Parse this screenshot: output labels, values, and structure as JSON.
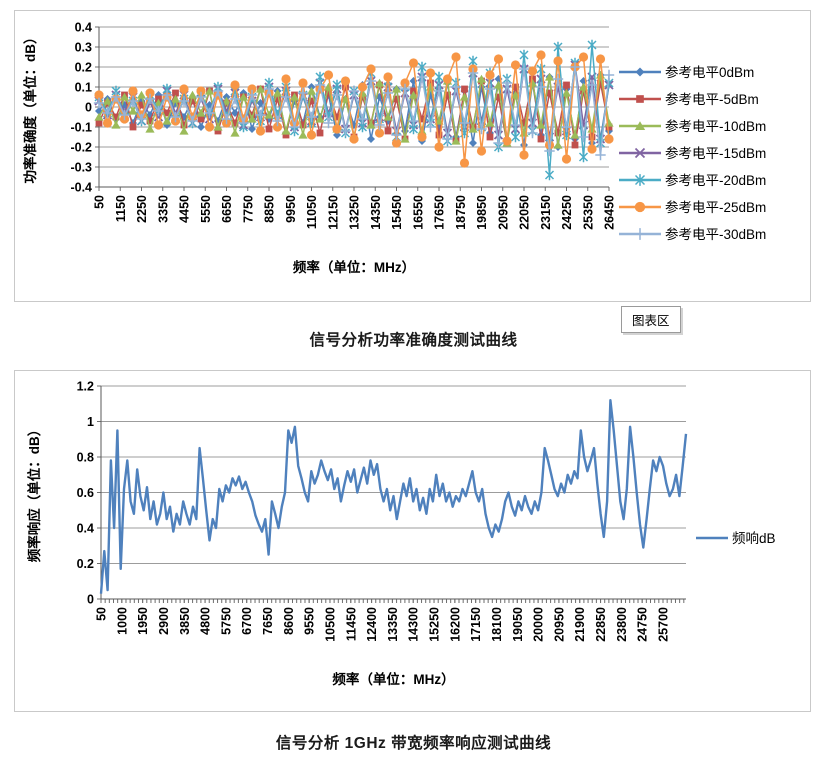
{
  "captions": {
    "chart1": "信号分析功率准确度测试曲线",
    "chart2": "信号分析 1GHz 带宽频率响应测试曲线"
  },
  "tooltip": {
    "label": "图表区"
  },
  "chart_data": [
    {
      "type": "line",
      "title": "",
      "xlabel": "频率（单位：MHz）",
      "ylabel": "功率准确度（单位：dB）",
      "ylim": [
        -0.4,
        0.4
      ],
      "ytick_labels": [
        "0.4",
        "0.3",
        "0.2",
        "0.1",
        "0",
        "-0.1",
        "-0.2",
        "-0.3",
        "-0.4"
      ],
      "xticks": [
        50,
        1150,
        2250,
        3350,
        4450,
        5550,
        6650,
        7750,
        8850,
        9950,
        11050,
        12150,
        13250,
        14350,
        15450,
        16550,
        17650,
        18750,
        19850,
        20950,
        22050,
        23150,
        24250,
        25350,
        26450
      ],
      "x_start": 50,
      "x_step": 440,
      "x_unit": "MHz",
      "grid": true,
      "legend_position": "right",
      "series": [
        {
          "name": "参考电平0dBm",
          "color": "#4F81BD",
          "marker": "diamond",
          "values": [
            -0.02,
            0.04,
            -0.06,
            0.01,
            -0.08,
            0.03,
            -0.04,
            0.06,
            -0.09,
            0.02,
            -0.05,
            0.04,
            -0.1,
            0.01,
            -0.07,
            0.05,
            -0.03,
            0.07,
            -0.11,
            0.02,
            -0.06,
            0.08,
            -0.13,
            0.03,
            -0.08,
            0.1,
            -0.05,
            0.06,
            -0.14,
            0.04,
            -0.09,
            0.11,
            -0.16,
            0.05,
            -0.07,
            0.09,
            -0.12,
            0.13,
            -0.17,
            0.06,
            -0.1,
            0.12,
            -0.15,
            0.08,
            -0.18,
            0.1,
            -0.13,
            0.14,
            -0.16,
            0.07,
            -0.19,
            0.12,
            -0.14,
            0.15,
            -0.2,
            0.09,
            -0.16,
            0.13,
            -0.18,
            0.16,
            -0.12
          ]
        },
        {
          "name": "参考电平-5dBm",
          "color": "#C0504D",
          "marker": "square",
          "values": [
            -0.08,
            0.02,
            -0.05,
            0.06,
            -0.1,
            0.01,
            -0.07,
            0.04,
            -0.03,
            0.07,
            -0.09,
            0.03,
            -0.06,
            0.08,
            -0.12,
            0.02,
            -0.08,
            0.05,
            -0.04,
            0.09,
            -0.11,
            0.04,
            -0.14,
            0.06,
            -0.09,
            0.03,
            -0.13,
            0.07,
            -0.05,
            0.1,
            -0.15,
            0.05,
            -0.08,
            0.11,
            -0.12,
            0.04,
            -0.16,
            0.08,
            -0.06,
            0.12,
            -0.14,
            0.06,
            -0.17,
            0.09,
            -0.1,
            0.13,
            -0.15,
            0.05,
            -0.18,
            0.1,
            -0.08,
            0.14,
            -0.16,
            0.07,
            -0.13,
            0.11,
            -0.19,
            0.08,
            -0.15,
            0.12,
            -0.1
          ]
        },
        {
          "name": "参考电平-10dBm",
          "color": "#9BBB59",
          "marker": "triangle",
          "values": [
            -0.05,
            0.03,
            -0.09,
            0.05,
            -0.02,
            0.06,
            -0.11,
            0.02,
            -0.07,
            0.04,
            -0.12,
            0.06,
            -0.03,
            0.08,
            -0.1,
            0.03,
            -0.13,
            0.05,
            -0.06,
            0.09,
            -0.04,
            0.07,
            -0.12,
            0.05,
            -0.14,
            0.08,
            -0.06,
            0.1,
            -0.11,
            0.04,
            -0.15,
            0.07,
            -0.09,
            0.12,
            -0.05,
            0.09,
            -0.16,
            0.06,
            -0.12,
            0.1,
            -0.07,
            0.13,
            -0.17,
            0.05,
            -0.11,
            0.14,
            -0.08,
            0.11,
            -0.18,
            0.06,
            -0.13,
            0.12,
            -0.09,
            0.15,
            -0.19,
            0.07,
            -0.14,
            0.1,
            -0.11,
            0.16,
            -0.08
          ]
        },
        {
          "name": "参考电平-15dBm",
          "color": "#8064A2",
          "marker": "x",
          "values": [
            0.03,
            -0.04,
            0.06,
            -0.02,
            0.05,
            -0.07,
            0.02,
            -0.05,
            0.08,
            -0.03,
            0.06,
            -0.08,
            0.04,
            -0.06,
            0.09,
            -0.02,
            0.07,
            -0.09,
            0.03,
            -0.05,
            0.1,
            -0.04,
            0.08,
            -0.1,
            0.05,
            -0.07,
            0.12,
            -0.03,
            0.09,
            -0.11,
            0.06,
            -0.08,
            0.13,
            -0.05,
            0.1,
            -0.12,
            0.07,
            -0.09,
            0.15,
            -0.06,
            0.11,
            -0.13,
            0.08,
            -0.1,
            0.17,
            -0.07,
            0.12,
            -0.14,
            0.09,
            -0.11,
            0.19,
            -0.08,
            0.14,
            -0.15,
            0.1,
            -0.12,
            0.21,
            -0.09,
            0.15,
            -0.16,
            0.11
          ]
        },
        {
          "name": "参考电平-20dBm",
          "color": "#4BACC6",
          "marker": "asterisk",
          "values": [
            0.05,
            -0.03,
            0.08,
            -0.05,
            0.03,
            -0.07,
            0.06,
            -0.02,
            0.09,
            -0.06,
            0.04,
            -0.08,
            0.07,
            -0.03,
            0.1,
            -0.05,
            0.08,
            -0.1,
            0.05,
            -0.07,
            0.12,
            -0.04,
            0.1,
            -0.12,
            0.06,
            -0.08,
            0.15,
            -0.05,
            0.11,
            -0.13,
            0.08,
            -0.1,
            0.17,
            -0.06,
            0.13,
            -0.15,
            0.1,
            -0.11,
            0.2,
            -0.08,
            0.15,
            -0.17,
            0.12,
            -0.13,
            0.23,
            -0.1,
            0.17,
            -0.2,
            0.14,
            -0.15,
            0.26,
            -0.12,
            0.19,
            -0.34,
            0.3,
            -0.14,
            0.22,
            -0.25,
            0.31,
            -0.18,
            0.12
          ]
        },
        {
          "name": "参考电平-25dBm",
          "color": "#F79646",
          "marker": "circle",
          "values": [
            0.06,
            -0.08,
            0.04,
            -0.06,
            0.08,
            -0.04,
            0.07,
            -0.09,
            0.05,
            -0.07,
            0.09,
            -0.05,
            0.08,
            -0.1,
            0.06,
            -0.08,
            0.11,
            -0.06,
            0.09,
            -0.12,
            0.07,
            -0.1,
            0.14,
            -0.08,
            0.12,
            -0.14,
            0.09,
            0.16,
            -0.11,
            0.13,
            -0.16,
            0.1,
            0.19,
            -0.13,
            0.15,
            -0.18,
            0.12,
            0.22,
            -0.15,
            0.17,
            -0.2,
            0.14,
            0.25,
            -0.28,
            0.19,
            -0.22,
            0.16,
            0.24,
            -0.17,
            0.21,
            -0.24,
            0.18,
            0.26,
            -0.19,
            0.23,
            -0.26,
            0.2,
            0.25,
            -0.21,
            0.24,
            -0.16
          ]
        },
        {
          "name": "参考电平-30dBm",
          "color": "#95B3D7",
          "marker": "plus",
          "values": [
            0.02,
            -0.03,
            0.05,
            -0.04,
            0.03,
            -0.06,
            0.04,
            -0.02,
            0.06,
            -0.05,
            0.03,
            -0.07,
            0.05,
            -0.03,
            0.08,
            -0.06,
            0.04,
            -0.08,
            0.06,
            -0.04,
            0.09,
            -0.07,
            0.05,
            -0.1,
            0.07,
            -0.05,
            0.11,
            -0.08,
            0.06,
            -0.12,
            0.08,
            -0.06,
            0.13,
            -0.09,
            0.07,
            -0.14,
            0.09,
            -0.07,
            0.15,
            -0.1,
            0.08,
            -0.16,
            0.1,
            -0.08,
            0.17,
            -0.11,
            0.09,
            -0.18,
            0.12,
            -0.09,
            0.19,
            -0.13,
            0.1,
            -0.22,
            0.14,
            -0.1,
            0.2,
            -0.15,
            0.11,
            -0.24,
            0.16
          ]
        }
      ]
    },
    {
      "type": "line",
      "title": "",
      "xlabel": "频率（单位：MHz）",
      "ylabel": "频率响应（单位：dB）",
      "ylim": [
        0,
        1.2
      ],
      "ytick_labels": [
        "1.2",
        "1",
        "0.8",
        "0.6",
        "0.4",
        "0.2",
        "0"
      ],
      "xticks": [
        50,
        1000,
        1950,
        2900,
        3850,
        4800,
        5750,
        6700,
        7650,
        8600,
        9550,
        10500,
        11450,
        12400,
        13350,
        14300,
        15250,
        16200,
        17150,
        18100,
        19050,
        20000,
        20950,
        21900,
        22850,
        23800,
        24750,
        25700
      ],
      "x_start": 50,
      "x_step": 150,
      "x_unit": "MHz",
      "grid": true,
      "legend_position": "right",
      "series": [
        {
          "name": "频响dB",
          "color": "#4F81BD",
          "marker": "none",
          "values": [
            0.03,
            0.27,
            0.05,
            0.78,
            0.4,
            0.95,
            0.17,
            0.62,
            0.78,
            0.55,
            0.48,
            0.73,
            0.58,
            0.5,
            0.63,
            0.45,
            0.55,
            0.42,
            0.48,
            0.6,
            0.45,
            0.52,
            0.38,
            0.48,
            0.42,
            0.55,
            0.48,
            0.42,
            0.52,
            0.45,
            0.85,
            0.68,
            0.5,
            0.33,
            0.45,
            0.4,
            0.62,
            0.55,
            0.64,
            0.6,
            0.68,
            0.64,
            0.69,
            0.62,
            0.66,
            0.6,
            0.55,
            0.47,
            0.42,
            0.38,
            0.45,
            0.25,
            0.55,
            0.48,
            0.4,
            0.52,
            0.6,
            0.95,
            0.88,
            0.97,
            0.75,
            0.68,
            0.6,
            0.55,
            0.72,
            0.65,
            0.7,
            0.78,
            0.72,
            0.67,
            0.73,
            0.62,
            0.68,
            0.55,
            0.64,
            0.72,
            0.66,
            0.73,
            0.6,
            0.67,
            0.74,
            0.65,
            0.78,
            0.7,
            0.76,
            0.62,
            0.55,
            0.62,
            0.5,
            0.58,
            0.45,
            0.55,
            0.65,
            0.58,
            0.68,
            0.55,
            0.62,
            0.5,
            0.57,
            0.48,
            0.62,
            0.55,
            0.7,
            0.58,
            0.65,
            0.55,
            0.6,
            0.52,
            0.58,
            0.55,
            0.62,
            0.58,
            0.65,
            0.72,
            0.6,
            0.55,
            0.62,
            0.48,
            0.4,
            0.35,
            0.42,
            0.38,
            0.45,
            0.55,
            0.6,
            0.52,
            0.47,
            0.55,
            0.5,
            0.58,
            0.52,
            0.48,
            0.55,
            0.5,
            0.6,
            0.85,
            0.78,
            0.7,
            0.62,
            0.58,
            0.65,
            0.6,
            0.7,
            0.65,
            0.72,
            0.68,
            0.95,
            0.8,
            0.72,
            0.78,
            0.85,
            0.65,
            0.48,
            0.35,
            0.55,
            1.12,
            0.95,
            0.75,
            0.55,
            0.45,
            0.62,
            0.97,
            0.8,
            0.6,
            0.42,
            0.29,
            0.45,
            0.62,
            0.78,
            0.72,
            0.8,
            0.75,
            0.65,
            0.58,
            0.62,
            0.7,
            0.58,
            0.75,
            0.93
          ]
        }
      ]
    }
  ]
}
